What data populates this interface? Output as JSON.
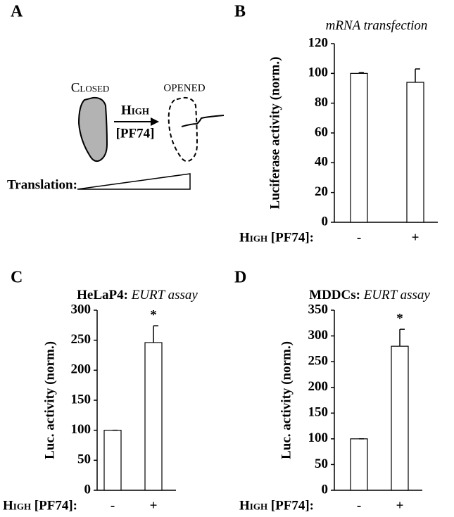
{
  "panels": [
    "A",
    "B",
    "C",
    "D"
  ],
  "diagram": {
    "closed": "Closed",
    "opened": "OPENED",
    "arrow_top": "High",
    "arrow_bottom": "[PF74]",
    "translation": "Translation:"
  },
  "chart_data": [
    {
      "type": "bar",
      "title": [
        "mRNA transfection"
      ],
      "ylabel": "Luciferase activity (norm.)",
      "xlabel": "High [PF74]:",
      "categories": [
        "-",
        "+"
      ],
      "values": [
        100,
        94
      ],
      "errors": [
        0.5,
        9
      ],
      "color": "#ffffff",
      "ylim": [
        0,
        120
      ],
      "yticks": [
        0,
        20,
        40,
        60,
        80,
        100,
        120
      ]
    },
    {
      "type": "bar",
      "title": [
        "HeLaP4:",
        "EURT assay"
      ],
      "ylabel": "Luc. activity (norm.)",
      "xlabel": "High [PF74]:",
      "categories": [
        "-",
        "+"
      ],
      "values": [
        100,
        246
      ],
      "errors": [
        0,
        28
      ],
      "color": "#ffffff",
      "annotation": "*",
      "ylim": [
        0,
        300
      ],
      "yticks": [
        0,
        50,
        100,
        150,
        200,
        250,
        300
      ]
    },
    {
      "type": "bar",
      "title": [
        "MDDCs:",
        "EURT assay"
      ],
      "ylabel": "Luc. activity (norm.)",
      "xlabel": "High [PF74]:",
      "categories": [
        "-",
        "+"
      ],
      "values": [
        100,
        280
      ],
      "errors": [
        0,
        33
      ],
      "color": "#ffffff",
      "annotation": "*",
      "ylim": [
        0,
        350
      ],
      "yticks": [
        0,
        50,
        100,
        150,
        200,
        250,
        300,
        350
      ]
    }
  ]
}
